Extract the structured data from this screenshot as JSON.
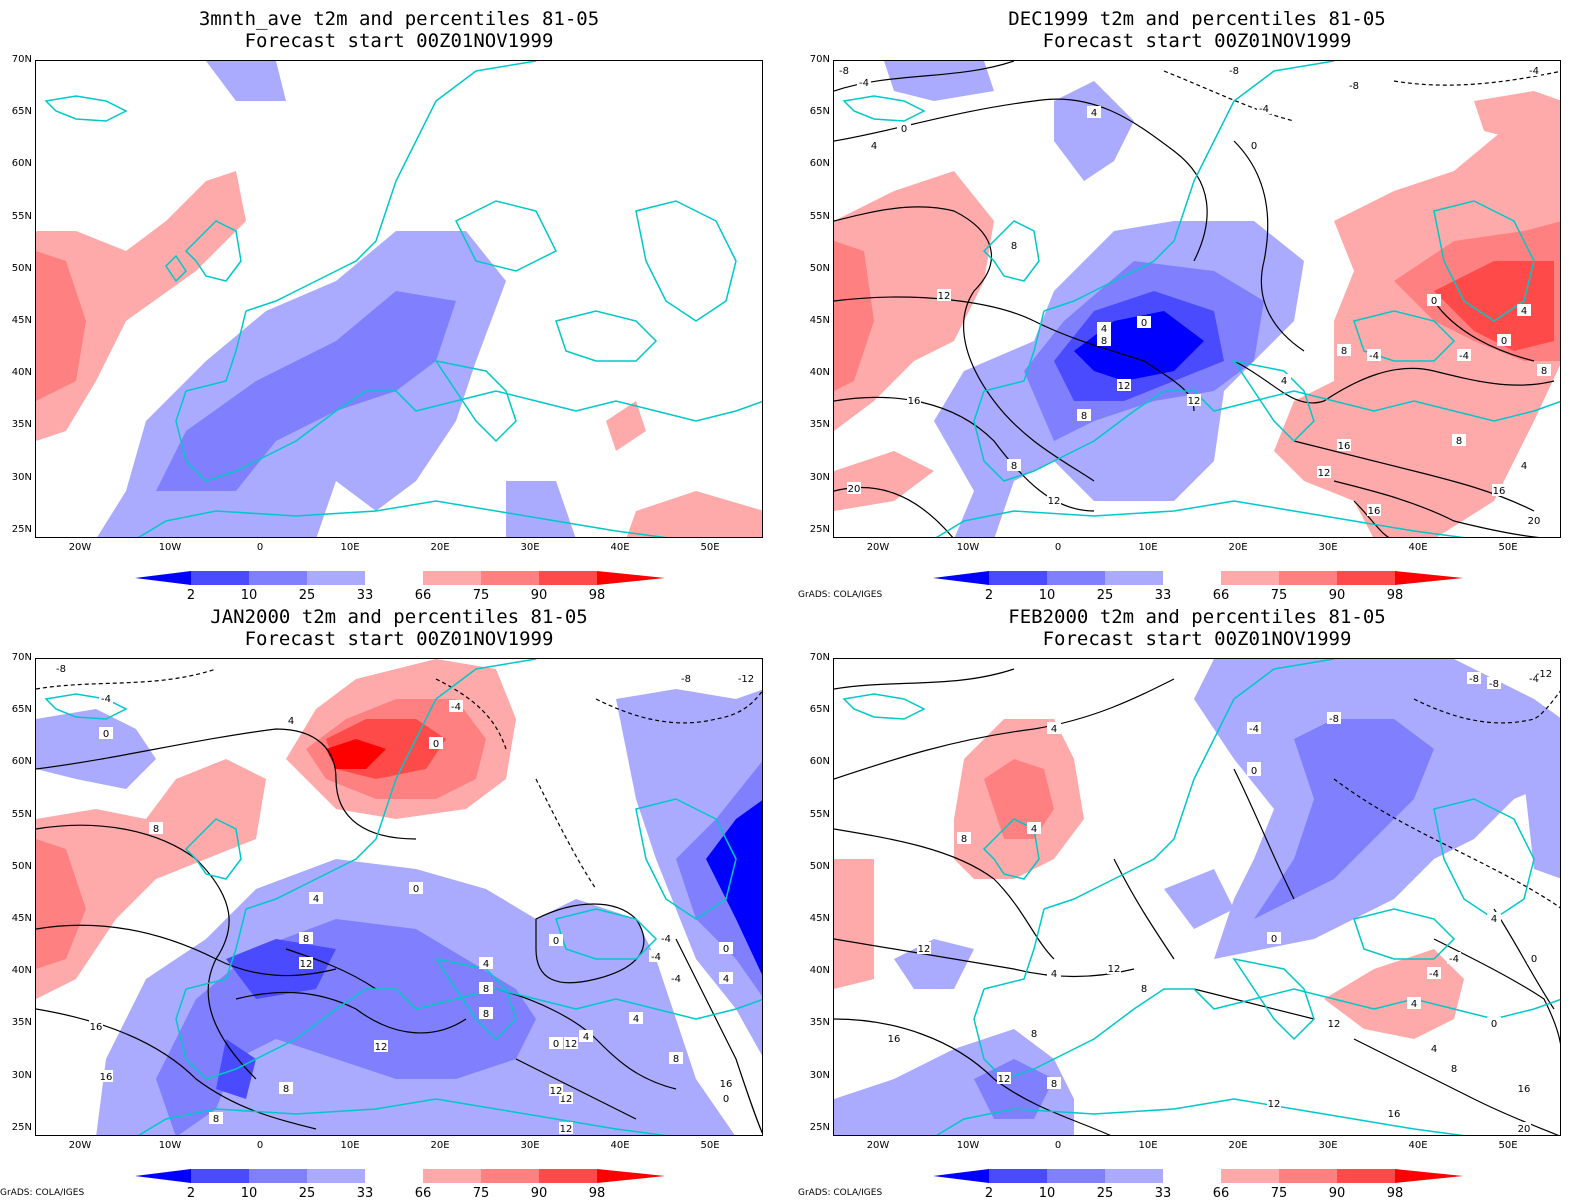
{
  "panels": [
    {
      "title_line1": "3mnth_ave t2m and percentiles 81-05",
      "title_line2": "Forecast start 00Z01NOV1999",
      "credit": ""
    },
    {
      "title_line1": "DEC1999 t2m and percentiles 81-05",
      "title_line2": "Forecast start 00Z01NOV1999",
      "credit": "GrADS: COLA/IGES"
    },
    {
      "title_line1": "JAN2000 t2m and percentiles 81-05",
      "title_line2": "Forecast start 00Z01NOV1999",
      "credit": "GrADS: COLA/IGES"
    },
    {
      "title_line1": "FEB2000 t2m and percentiles 81-05",
      "title_line2": "Forecast start 00Z01NOV1999",
      "credit": "GrADS: COLA/IGES"
    }
  ],
  "lat_labels": [
    "70N",
    "65N",
    "60N",
    "55N",
    "50N",
    "45N",
    "40N",
    "35N",
    "30N",
    "25N"
  ],
  "lon_labels": [
    "20W",
    "10W",
    "0",
    "10E",
    "20E",
    "30E",
    "40E",
    "50E"
  ],
  "colorbar": {
    "labels": [
      "2",
      "10",
      "25",
      "33",
      "66",
      "75",
      "90",
      "98"
    ],
    "colors": [
      "#0000ff",
      "#4a4aff",
      "#8080ff",
      "#aaaaff",
      "#ffffff",
      "#ffaaaa",
      "#ff8080",
      "#ff4a4a",
      "#ff0000"
    ]
  },
  "colors": {
    "coast": "#00c8c8",
    "contour": "#000000",
    "cold_strong": "#0000ff",
    "cold_mid": "#4a4aff",
    "cold_light": "#8080ff",
    "cold_pale": "#aaaaff",
    "warm_pale": "#ffaaaa",
    "warm_light": "#ff8080",
    "warm_mid": "#ff4a4a",
    "warm_strong": "#ff0000"
  },
  "contour_labels": {
    "dec": [
      "-8",
      "-4",
      "-8",
      "-8",
      "-4",
      "4",
      "0",
      "-4",
      "4",
      "0",
      "8",
      "12",
      "4",
      "0",
      "8",
      "12",
      "16",
      "8",
      "12",
      "8",
      "12",
      "20",
      "0",
      "4",
      "0",
      "8",
      "-4",
      "-4",
      "4",
      "8",
      "16",
      "12",
      "8",
      "16",
      "16",
      "20",
      "4"
    ],
    "jan": [
      "-8",
      "-4",
      "0",
      "4",
      "0",
      "-4",
      "8",
      "4",
      "0",
      "8",
      "12",
      "4",
      "-4",
      "8",
      "12",
      "4",
      "0",
      "12",
      "8",
      "16",
      "8",
      "12",
      "-4",
      "0",
      "4",
      "12",
      "8",
      "0",
      "12",
      "16",
      "4",
      "8",
      "0",
      "-4",
      "-12",
      "-8",
      "16"
    ],
    "feb": [
      "-8",
      "-4",
      "0",
      "4",
      "4",
      "0",
      "8",
      "-4",
      "-8",
      "-8",
      "-12",
      "12",
      "4",
      "8",
      "12",
      "0",
      "-4",
      "12",
      "4",
      "8",
      "12",
      "16",
      "8",
      "4",
      "0",
      "8",
      "12",
      "16",
      "16",
      "20",
      "4",
      "0",
      "-4"
    ]
  }
}
